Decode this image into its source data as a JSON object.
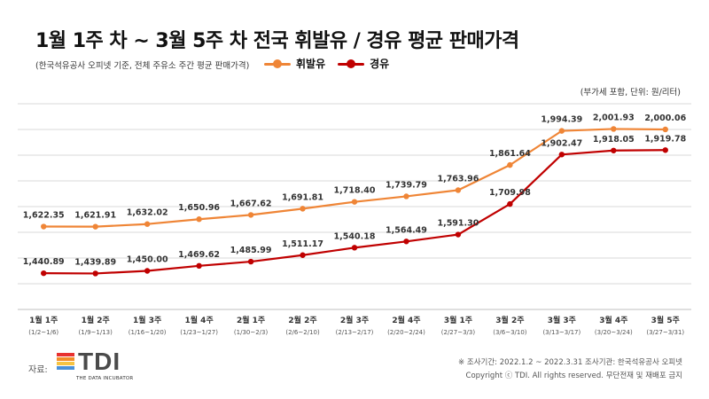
{
  "title": "1월 1주 차 ~ 3월 5주 차 전국 휘발유 / 경유 평균 판매가격",
  "subtitle": "(한국석유공사 오피넷 기준, 전체 주유소 주간 평균 판매가격)",
  "unit_note": "(부가세 포함, 단위: 원/리터)",
  "source_label": "자료:",
  "logo": {
    "text": "TDI",
    "sub": "THE DATA INCUBATOR"
  },
  "footer": {
    "line1": "※ 조사기간: 2022.1.2 ~ 2022.3.31   조사기관: 한국석유공사 오피넷",
    "line2": "Copyright ⓒ TDI. All rights reserved. 무단전재 및 재배포 금지"
  },
  "colors": {
    "gasoline": "#ef8536",
    "diesel": "#c00000",
    "grid": "#d9d9d9"
  },
  "chart_data": {
    "type": "line",
    "categories": [
      "1월 1주",
      "1월 2주",
      "1월 3주",
      "1월 4주",
      "2월 1주",
      "2월 2주",
      "2월 3주",
      "2월 4주",
      "3월 1주",
      "3월 2주",
      "3월 3주",
      "3월 4주",
      "3월 5주"
    ],
    "category_ranges": [
      "(1/2~1/6)",
      "(1/9~1/13)",
      "(1/16~1/20)",
      "(1/23~1/27)",
      "(1/30~2/3)",
      "(2/6~2/10)",
      "(2/13~2/17)",
      "(2/20~2/24)",
      "(2/27~3/3)",
      "(3/6~3/10)",
      "(3/13~3/17)",
      "(3/20~3/24)",
      "(3/27~3/31)"
    ],
    "series": [
      {
        "name": "휘발유",
        "color": "#ef8536",
        "values": [
          1622.35,
          1621.91,
          1632.02,
          1650.96,
          1667.62,
          1691.81,
          1718.4,
          1739.79,
          1763.96,
          1861.64,
          1994.39,
          2001.93,
          2000.06
        ],
        "labels": [
          "1,622.35",
          "1,621.91",
          "1,632.02",
          "1,650.96",
          "1,667.62",
          "1,691.81",
          "1,718.40",
          "1,739.79",
          "1,763.96",
          "1,861.64",
          "1,994.39",
          "2,001.93",
          "2,000.06"
        ]
      },
      {
        "name": "경유",
        "color": "#c00000",
        "values": [
          1440.89,
          1439.89,
          1450.0,
          1469.62,
          1485.99,
          1511.17,
          1540.18,
          1564.49,
          1591.3,
          1709.98,
          1902.47,
          1918.05,
          1919.78
        ],
        "labels": [
          "1,440.89",
          "1,439.89",
          "1,450.00",
          "1,469.62",
          "1,485.99",
          "1,511.17",
          "1,540.18",
          "1,564.49",
          "1,591.30",
          "1,709.98",
          "1,902.47",
          "1,918.05",
          "1,919.78"
        ]
      }
    ],
    "xlabel": "",
    "ylabel": "",
    "ylim": [
      1300,
      2100
    ],
    "grid": true,
    "legend": "top"
  }
}
